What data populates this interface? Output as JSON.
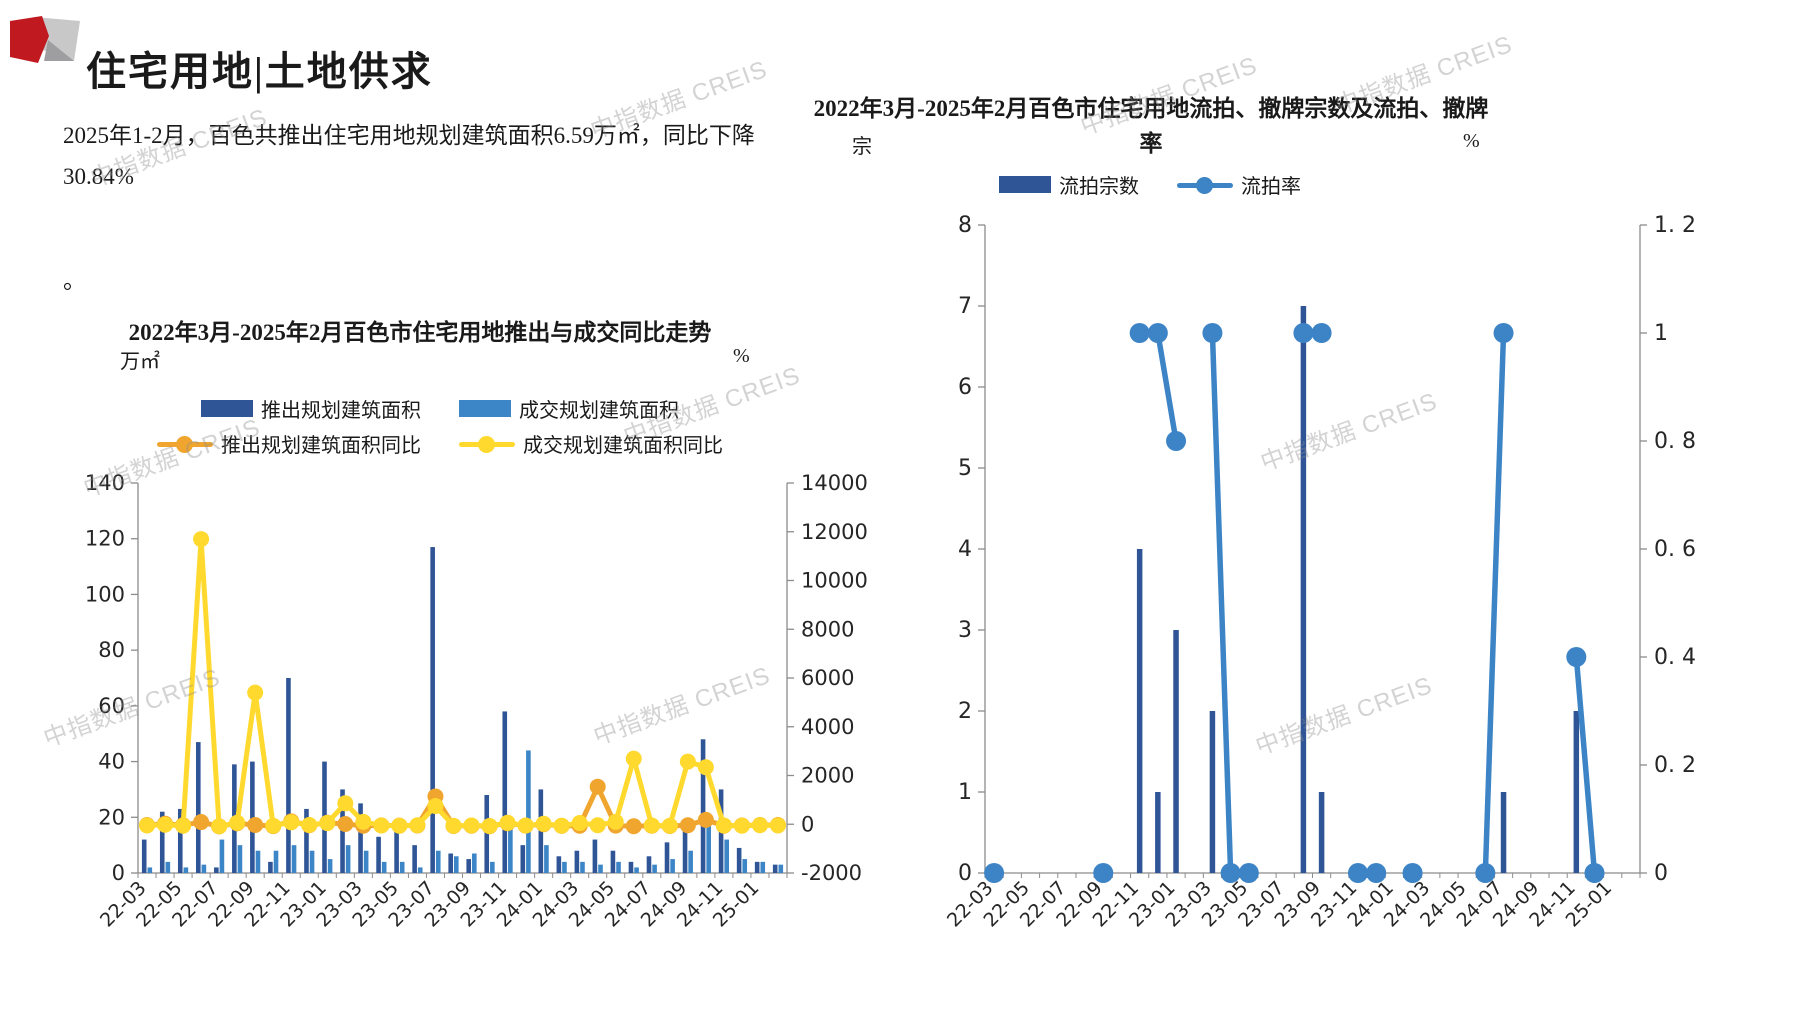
{
  "header": {
    "title": "住宅用地|土地供求"
  },
  "left_panel": {
    "paragraph": "2025年1-2月，百色共推出住宅用地规划建筑面积6.59万㎡，同比下降30.84%",
    "footnote": "。"
  },
  "watermark": {
    "text": "中指数据 CREIS"
  },
  "colors": {
    "bar_dark_blue": "#2F5597",
    "bar_light_blue": "#3C86C8",
    "line_orange": "#F0A62E",
    "line_yellow": "#FFD92E",
    "line_blue": "#3D84C6",
    "logo_red": "#C01920",
    "axis_gray": "#8C8C8C"
  },
  "chart_data": [
    {
      "type": "bar+line",
      "title": "2022年3月-2025年2月百色市住宅用地推出与成交同比走势",
      "left_axis": {
        "unit": "万㎡",
        "range": [
          0,
          140
        ],
        "ticks": [
          0,
          20,
          40,
          60,
          80,
          100,
          120,
          140
        ],
        "tick_labels": [
          "0",
          "20",
          "40",
          "60",
          "80",
          "100",
          "120",
          "140"
        ]
      },
      "right_axis": {
        "unit": "%",
        "range": [
          -2000,
          14000
        ],
        "ticks": [
          -2000,
          0,
          2000,
          4000,
          6000,
          8000,
          10000,
          12000,
          14000
        ],
        "tick_labels": [
          "-2000",
          "0",
          "2000",
          "4000",
          "6000",
          "8000",
          "10000",
          "12000",
          "14000"
        ]
      },
      "categories": [
        "22-03",
        "22-04",
        "22-05",
        "22-06",
        "22-07",
        "22-08",
        "22-09",
        "22-10",
        "22-11",
        "22-12",
        "23-01",
        "23-02",
        "23-03",
        "23-04",
        "23-05",
        "23-06",
        "23-07",
        "23-08",
        "23-09",
        "23-10",
        "23-11",
        "23-12",
        "24-01",
        "24-02",
        "24-03",
        "24-04",
        "24-05",
        "24-06",
        "24-07",
        "24-08",
        "24-09",
        "24-10",
        "24-11",
        "24-12",
        "25-01",
        "25-02"
      ],
      "x_tick_labels": [
        "22-03",
        "22-05",
        "22-07",
        "22-09",
        "22-11",
        "23-01",
        "23-03",
        "23-05",
        "23-07",
        "23-09",
        "23-11",
        "24-01",
        "24-03",
        "24-05",
        "24-07",
        "24-09",
        "24-11",
        "25-01"
      ],
      "bar_series": [
        {
          "name": "推出规划建筑面积",
          "color": "#2F5597",
          "axis": "left",
          "values": [
            12,
            22,
            23,
            47,
            2,
            39,
            40,
            4,
            70,
            23,
            40,
            30,
            25,
            13,
            19,
            10,
            117,
            7,
            5,
            28,
            58,
            10,
            30,
            6,
            8,
            12,
            8,
            4,
            6,
            11,
            16,
            48,
            30,
            9,
            4,
            3
          ]
        },
        {
          "name": "成交规划建筑面积",
          "color": "#3C86C8",
          "axis": "left",
          "values": [
            2,
            4,
            2,
            3,
            12,
            10,
            8,
            8,
            10,
            8,
            5,
            10,
            8,
            4,
            4,
            2,
            8,
            6,
            7,
            4,
            16,
            44,
            10,
            4,
            4,
            3,
            4,
            2,
            3,
            5,
            8,
            18,
            12,
            5,
            4,
            3
          ]
        }
      ],
      "line_series": [
        {
          "name": "推出规划建筑面积同比",
          "color": "#F0A62E",
          "axis": "right",
          "values": [
            -30,
            20,
            -40,
            90,
            -85,
            40,
            -30,
            -75,
            120,
            -40,
            60,
            10,
            -60,
            -45,
            -55,
            -50,
            1140,
            -70,
            -60,
            -80,
            40,
            -55,
            0,
            -65,
            -60,
            1540,
            -55,
            -80,
            -60,
            -70,
            -40,
            180,
            -60,
            -50,
            -31,
            -31
          ]
        },
        {
          "name": "成交规划建筑面积同比",
          "color": "#FFD92E",
          "axis": "right",
          "values": [
            -50,
            -20,
            -60,
            11700,
            -80,
            60,
            5400,
            -60,
            80,
            -30,
            50,
            860,
            100,
            -50,
            -60,
            -40,
            750,
            -60,
            -50,
            -70,
            60,
            -50,
            20,
            -60,
            50,
            -40,
            100,
            2690,
            -50,
            -60,
            2570,
            2340,
            -50,
            -60,
            -40,
            -50
          ]
        }
      ]
    },
    {
      "type": "bar+line",
      "title": "2022年3月-2025年2月百色市住宅用地流拍、撤牌宗数及流拍、撤牌率",
      "left_axis": {
        "unit": "宗",
        "range": [
          0,
          8
        ],
        "ticks": [
          0,
          1,
          2,
          3,
          4,
          5,
          6,
          7,
          8
        ],
        "tick_labels": [
          "0",
          "1",
          "2",
          "3",
          "4",
          "5",
          "6",
          "7",
          "8"
        ]
      },
      "right_axis": {
        "unit": "%",
        "range": [
          0,
          1.2
        ],
        "ticks": [
          0,
          0.2,
          0.4,
          0.6,
          0.8,
          1,
          1.2
        ],
        "tick_labels": [
          "0",
          "0. 2",
          "0. 4",
          "0. 6",
          "0. 8",
          "1",
          "1. 2"
        ]
      },
      "categories": [
        "22-03",
        "22-04",
        "22-05",
        "22-06",
        "22-07",
        "22-08",
        "22-09",
        "22-10",
        "22-11",
        "22-12",
        "23-01",
        "23-02",
        "23-03",
        "23-04",
        "23-05",
        "23-06",
        "23-07",
        "23-08",
        "23-09",
        "23-10",
        "23-11",
        "23-12",
        "24-01",
        "24-02",
        "24-03",
        "24-04",
        "24-05",
        "24-06",
        "24-07",
        "24-08",
        "24-09",
        "24-10",
        "24-11",
        "24-12",
        "25-01",
        "25-02"
      ],
      "x_tick_labels": [
        "22-03",
        "22-05",
        "22-07",
        "22-09",
        "22-11",
        "23-01",
        "23-03",
        "23-05",
        "23-07",
        "23-09",
        "23-11",
        "24-01",
        "24-03",
        "24-05",
        "24-07",
        "24-09",
        "24-11",
        "25-01"
      ],
      "bar_series": [
        {
          "name": "流拍宗数",
          "color": "#2F5597",
          "axis": "left",
          "values": [
            null,
            null,
            null,
            null,
            null,
            null,
            null,
            null,
            4,
            1,
            3,
            null,
            2,
            null,
            null,
            null,
            null,
            7,
            1,
            null,
            null,
            null,
            null,
            null,
            null,
            null,
            null,
            null,
            1,
            null,
            null,
            null,
            2,
            null,
            null,
            null
          ]
        }
      ],
      "line_series": [
        {
          "name": "流拍率",
          "color": "#3D84C6",
          "axis": "right",
          "values": [
            0,
            null,
            null,
            null,
            null,
            null,
            0,
            null,
            1,
            1,
            0.8,
            null,
            1,
            0,
            0,
            null,
            null,
            1,
            1,
            null,
            0,
            0,
            null,
            0,
            null,
            null,
            null,
            0,
            1,
            null,
            null,
            null,
            0.4,
            0,
            null,
            null
          ]
        }
      ]
    }
  ]
}
